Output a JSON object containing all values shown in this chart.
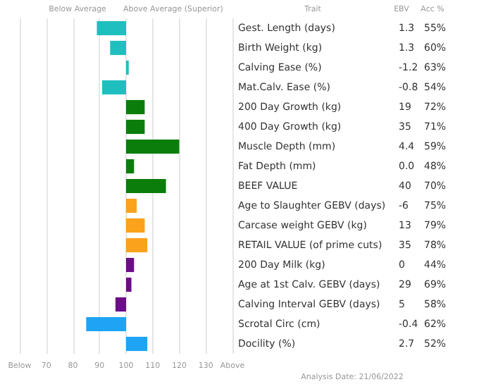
{
  "chart_data": {
    "type": "bar",
    "orientation": "horizontal",
    "categories": [
      "Gest. Length (days)",
      "Birth Weight (kg)",
      "Calving Ease (%)",
      "Mat.Calv. Ease (%)",
      "200 Day Growth (kg)",
      "400 Day Growth (kg)",
      "Muscle Depth (mm)",
      "Fat Depth (mm)",
      "BEEF VALUE",
      "Age to Slaughter GEBV (days)",
      "Carcase weight GEBV (kg)",
      "RETAIL VALUE (of prime cuts)",
      "200 Day Milk (kg)",
      "Age at 1st Calv. GEBV (days)",
      "Calving Interval GEBV (days)",
      "Scrotal Circ (cm)",
      "Docility (%)"
    ],
    "base": [
      100,
      100,
      100,
      100,
      100,
      100,
      100,
      100,
      100,
      100,
      100,
      100,
      100,
      100,
      100,
      100,
      100
    ],
    "values": [
      -11,
      -6,
      1,
      -9,
      7,
      7,
      20,
      3,
      15,
      4,
      7,
      8,
      3,
      2,
      -4,
      -15,
      8
    ],
    "colors": [
      "#1fbfbf",
      "#1fbfbf",
      "#1fbfbf",
      "#1fbfbf",
      "#0b7d0b",
      "#0b7d0b",
      "#0b7d0b",
      "#0b7d0b",
      "#0b7d0b",
      "#fba21c",
      "#fba21c",
      "#fba21c",
      "#6b0d86",
      "#6b0d86",
      "#6b0d86",
      "#1ea3f5",
      "#1ea3f5"
    ],
    "xlim": [
      60,
      140
    ],
    "xticks": [
      {
        "value": 60,
        "label": "Below"
      },
      70,
      80,
      90,
      100,
      110,
      120,
      130,
      {
        "value": 140,
        "label": "Above"
      }
    ],
    "grid": "x",
    "annotations": [
      "Below Average",
      "Above Average (Superior)",
      "Trait",
      "EBV",
      "Acc %",
      "Analysis Date: 21/06/2022",
      "1.3",
      "55%",
      "1.3",
      "60%",
      "-1.2",
      "63%",
      "-0.8",
      "54%",
      "19",
      "72%",
      "35",
      "71%",
      "4.4",
      "59%",
      "0.0",
      "48%",
      "40",
      "70%",
      "-6",
      "75%",
      "13",
      "79%",
      "35",
      "78%",
      "0",
      "44%",
      "29",
      "69%",
      "5",
      "58%",
      "-0.4",
      "62%",
      "2.7",
      "52%"
    ]
  }
}
